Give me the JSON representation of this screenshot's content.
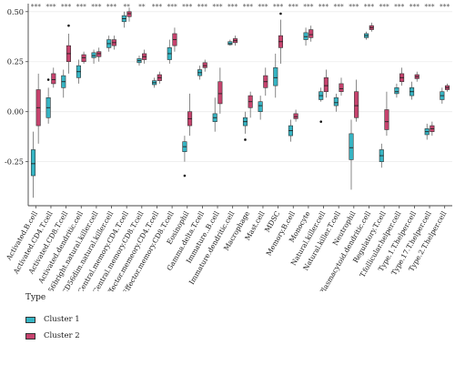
{
  "chart_data": {
    "type": "box",
    "yticks": [
      -0.25,
      0.0,
      0.25,
      0.5
    ],
    "ytick_labels": [
      "-0.25",
      "0.00",
      "0.25",
      "0.50"
    ],
    "ylim": [
      -0.47,
      0.54
    ],
    "categories": [
      "Activated.B.cell",
      "Activated.CD4.T.cell",
      "Activated.CD8.T.cell",
      "Activated.dendritic.cell",
      "CD56bright.natural.killer.cell",
      "CD56dim.natural.killer.cell",
      "Central.memory.CD4.T.cell",
      "Central.memory.CD8.T.cell",
      "Effector.memeory.CD4.T.cell",
      "Effector.memory.CD8.T.cell",
      "Eosinophil",
      "Gamma.delta.T.cell",
      "Immature..B.cell",
      "Immature.dendritic.cell",
      "Macrophage",
      "Mast.cell",
      "MDSC",
      "Memory.B.cell",
      "Monocyte",
      "Natural.killer.cell",
      "Natural.killer.T.cell",
      "Neutrophil",
      "Plasmacytoid.dendritic.cell",
      "Regulatory.T.cell",
      "T.follicular.helper.cell",
      "Type.1.T.helper.cell",
      "Type.17.T.helper.cell",
      "Type.2.T.helper.cell"
    ],
    "significance": [
      "***",
      "***",
      "***",
      "***",
      "***",
      "***",
      "**",
      "**",
      "***",
      "***",
      "***",
      "***",
      "***",
      "***",
      "***",
      "***",
      "***",
      "***",
      "***",
      "***",
      "***",
      "***",
      "***",
      "***",
      "***",
      "***",
      "***",
      "***"
    ],
    "series": [
      {
        "name": "Cluster 1",
        "color": "#36b5c4",
        "boxes": [
          {
            "min": -0.43,
            "q1": -0.32,
            "median": -0.26,
            "q3": -0.19,
            "max": -0.1
          },
          {
            "min": -0.06,
            "q1": -0.03,
            "median": 0.02,
            "q3": 0.07,
            "max": 0.12,
            "outliers": [
              0.16
            ]
          },
          {
            "min": 0.07,
            "q1": 0.12,
            "median": 0.15,
            "q3": 0.18,
            "max": 0.21
          },
          {
            "min": 0.14,
            "q1": 0.17,
            "median": 0.2,
            "q3": 0.23,
            "max": 0.26
          },
          {
            "min": 0.24,
            "q1": 0.27,
            "median": 0.28,
            "q3": 0.295,
            "max": 0.31
          },
          {
            "min": 0.3,
            "q1": 0.32,
            "median": 0.34,
            "q3": 0.36,
            "max": 0.38
          },
          {
            "min": 0.42,
            "q1": 0.45,
            "median": 0.465,
            "q3": 0.48,
            "max": 0.5
          },
          {
            "min": 0.23,
            "q1": 0.245,
            "median": 0.255,
            "q3": 0.265,
            "max": 0.28
          },
          {
            "min": 0.12,
            "q1": 0.135,
            "median": 0.145,
            "q3": 0.155,
            "max": 0.17
          },
          {
            "min": 0.24,
            "q1": 0.26,
            "median": 0.29,
            "q3": 0.32,
            "max": 0.36
          },
          {
            "min": -0.25,
            "q1": -0.2,
            "median": -0.175,
            "q3": -0.15,
            "max": -0.12,
            "outliers": [
              -0.32
            ]
          },
          {
            "min": 0.16,
            "q1": 0.18,
            "median": 0.195,
            "q3": 0.21,
            "max": 0.23
          },
          {
            "min": -0.1,
            "q1": -0.05,
            "median": -0.03,
            "q3": -0.01,
            "max": 0.07
          },
          {
            "min": 0.33,
            "q1": 0.335,
            "median": 0.34,
            "q3": 0.35,
            "max": 0.36
          },
          {
            "min": -0.11,
            "q1": -0.07,
            "median": -0.05,
            "q3": -0.03,
            "max": 0.0,
            "outliers": [
              -0.14
            ]
          },
          {
            "min": -0.04,
            "q1": 0.0,
            "median": 0.03,
            "q3": 0.05,
            "max": 0.08
          },
          {
            "min": 0.07,
            "q1": 0.13,
            "median": 0.17,
            "q3": 0.22,
            "max": 0.29
          },
          {
            "min": -0.15,
            "q1": -0.12,
            "median": -0.095,
            "q3": -0.07,
            "max": -0.04
          },
          {
            "min": 0.33,
            "q1": 0.36,
            "median": 0.375,
            "q3": 0.395,
            "max": 0.42
          },
          {
            "min": 0.05,
            "q1": 0.06,
            "median": 0.08,
            "q3": 0.1,
            "max": 0.12,
            "outliers": [
              -0.05
            ]
          },
          {
            "min": 0.0,
            "q1": 0.03,
            "median": 0.045,
            "q3": 0.07,
            "max": 0.09
          },
          {
            "min": -0.39,
            "q1": -0.24,
            "median": -0.18,
            "q3": -0.11,
            "max": -0.04
          },
          {
            "min": 0.36,
            "q1": 0.37,
            "median": 0.38,
            "q3": 0.39,
            "max": 0.4
          },
          {
            "min": -0.28,
            "q1": -0.25,
            "median": -0.22,
            "q3": -0.19,
            "max": -0.16
          },
          {
            "min": 0.07,
            "q1": 0.09,
            "median": 0.1,
            "q3": 0.12,
            "max": 0.14
          },
          {
            "min": 0.06,
            "q1": 0.08,
            "median": 0.1,
            "q3": 0.12,
            "max": 0.15
          },
          {
            "min": -0.14,
            "q1": -0.115,
            "median": -0.1,
            "q3": -0.085,
            "max": -0.06
          },
          {
            "min": 0.04,
            "q1": 0.06,
            "median": 0.08,
            "q3": 0.1,
            "max": 0.12
          }
        ]
      },
      {
        "name": "Cluster 2",
        "color": "#c7436e",
        "boxes": [
          {
            "min": -0.16,
            "q1": -0.07,
            "median": 0.02,
            "q3": 0.11,
            "max": 0.19
          },
          {
            "min": 0.12,
            "q1": 0.14,
            "median": 0.16,
            "q3": 0.19,
            "max": 0.22
          },
          {
            "min": 0.19,
            "q1": 0.25,
            "median": 0.29,
            "q3": 0.33,
            "max": 0.39,
            "outliers": [
              0.43
            ]
          },
          {
            "min": 0.24,
            "q1": 0.25,
            "median": 0.27,
            "q3": 0.285,
            "max": 0.3
          },
          {
            "min": 0.25,
            "q1": 0.275,
            "median": 0.29,
            "q3": 0.3,
            "max": 0.32
          },
          {
            "min": 0.31,
            "q1": 0.33,
            "median": 0.345,
            "q3": 0.36,
            "max": 0.38
          },
          {
            "min": 0.45,
            "q1": 0.475,
            "median": 0.49,
            "q3": 0.5,
            "max": 0.52
          },
          {
            "min": 0.24,
            "q1": 0.26,
            "median": 0.275,
            "q3": 0.29,
            "max": 0.31
          },
          {
            "min": 0.14,
            "q1": 0.155,
            "median": 0.17,
            "q3": 0.185,
            "max": 0.2
          },
          {
            "min": 0.3,
            "q1": 0.33,
            "median": 0.36,
            "q3": 0.39,
            "max": 0.42
          },
          {
            "min": -0.12,
            "q1": -0.07,
            "median": -0.035,
            "q3": 0.0,
            "max": 0.09
          },
          {
            "min": 0.2,
            "q1": 0.22,
            "median": 0.23,
            "q3": 0.245,
            "max": 0.26
          },
          {
            "min": -0.01,
            "q1": 0.04,
            "median": 0.09,
            "q3": 0.15,
            "max": 0.22
          },
          {
            "min": 0.33,
            "q1": 0.345,
            "median": 0.355,
            "q3": 0.365,
            "max": 0.38
          },
          {
            "min": -0.03,
            "q1": 0.02,
            "median": 0.05,
            "q3": 0.08,
            "max": 0.1
          },
          {
            "min": 0.08,
            "q1": 0.12,
            "median": 0.15,
            "q3": 0.18,
            "max": 0.22
          },
          {
            "min": 0.24,
            "q1": 0.32,
            "median": 0.35,
            "q3": 0.38,
            "max": 0.46,
            "outliers": [
              0.49
            ]
          },
          {
            "min": -0.05,
            "q1": -0.035,
            "median": -0.025,
            "q3": -0.01,
            "max": 0.01
          },
          {
            "min": 0.35,
            "q1": 0.37,
            "median": 0.385,
            "q3": 0.41,
            "max": 0.43
          },
          {
            "min": 0.07,
            "q1": 0.1,
            "median": 0.13,
            "q3": 0.17,
            "max": 0.21
          },
          {
            "min": 0.08,
            "q1": 0.1,
            "median": 0.115,
            "q3": 0.14,
            "max": 0.17
          },
          {
            "min": -0.05,
            "q1": -0.03,
            "median": 0.03,
            "q3": 0.1,
            "max": 0.16
          },
          {
            "min": 0.4,
            "q1": 0.41,
            "median": 0.42,
            "q3": 0.43,
            "max": 0.445
          },
          {
            "min": -0.12,
            "q1": -0.09,
            "median": -0.05,
            "q3": 0.01,
            "max": 0.1
          },
          {
            "min": 0.13,
            "q1": 0.15,
            "median": 0.17,
            "q3": 0.19,
            "max": 0.22
          },
          {
            "min": 0.15,
            "q1": 0.165,
            "median": 0.175,
            "q3": 0.185,
            "max": 0.2
          },
          {
            "min": -0.12,
            "q1": -0.1,
            "median": -0.085,
            "q3": -0.07,
            "max": -0.05
          },
          {
            "min": 0.1,
            "q1": 0.11,
            "median": 0.12,
            "q3": 0.13,
            "max": 0.14
          }
        ]
      }
    ]
  },
  "legend": {
    "title": "Type",
    "items": [
      {
        "label": "Cluster 1",
        "color": "#36b5c4"
      },
      {
        "label": "Cluster 2",
        "color": "#c7436e"
      }
    ]
  }
}
